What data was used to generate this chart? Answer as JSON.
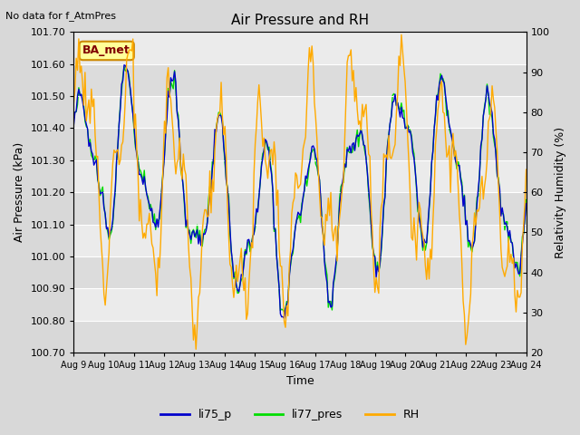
{
  "title": "Air Pressure and RH",
  "top_left_text": "No data for f_AtmPres",
  "box_label": "BA_met",
  "xlabel": "Time",
  "ylabel_left": "Air Pressure (kPa)",
  "ylabel_right": "Relativity Humidity (%)",
  "ylim_left": [
    100.7,
    101.7
  ],
  "ylim_right": [
    20,
    100
  ],
  "yticks_left": [
    100.7,
    100.8,
    100.9,
    101.0,
    101.1,
    101.2,
    101.3,
    101.4,
    101.5,
    101.6,
    101.7
  ],
  "yticks_right": [
    20,
    30,
    40,
    50,
    60,
    70,
    80,
    90,
    100
  ],
  "xtick_labels": [
    "Aug 9",
    "Aug 10",
    "Aug 11",
    "Aug 12",
    "Aug 13",
    "Aug 14",
    "Aug 15",
    "Aug 16",
    "Aug 17",
    "Aug 18",
    "Aug 19",
    "Aug 20",
    "Aug 21",
    "Aug 22",
    "Aug 23",
    "Aug 24"
  ],
  "background_color": "#d8d8d8",
  "plot_bg_color": "#e8e8e8",
  "line_colors": {
    "li75_p": "#0000cc",
    "li77_pres": "#00dd00",
    "RH": "#ffaa00"
  },
  "legend_entries": [
    "li75_p",
    "li77_pres",
    "RH"
  ]
}
